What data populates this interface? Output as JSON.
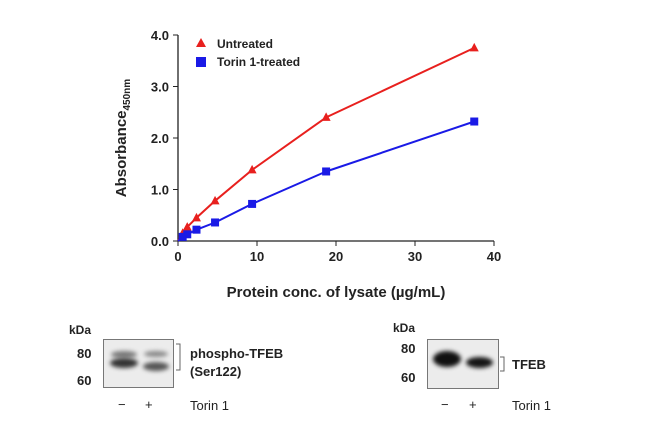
{
  "chart_data": {
    "type": "line",
    "xlabel": "Protein conc. of lysate (µg/mL)",
    "ylabel": "Absorbance",
    "ylabel_subscript": "450nm",
    "xlim": [
      0,
      40
    ],
    "ylim": [
      0,
      4
    ],
    "xticks": [
      "0",
      "10",
      "20",
      "30",
      "40"
    ],
    "yticks": [
      "0.0",
      "1.0",
      "2.0",
      "3.0",
      "4.0"
    ],
    "grid": false,
    "legend_position": "top-left",
    "series": [
      {
        "name": "Untreated",
        "color": "#e8201e",
        "marker": "triangle",
        "x": [
          0.59,
          1.17,
          2.34,
          4.69,
          9.38,
          18.75,
          37.5
        ],
        "y": [
          0.15,
          0.27,
          0.45,
          0.78,
          1.38,
          2.4,
          3.75
        ]
      },
      {
        "name": "Torin 1-treated",
        "color": "#1a1ae6",
        "marker": "square",
        "x": [
          0.59,
          1.17,
          2.34,
          4.69,
          9.38,
          18.75,
          37.5
        ],
        "y": [
          0.08,
          0.13,
          0.22,
          0.36,
          0.72,
          1.35,
          2.32
        ]
      }
    ]
  },
  "blots": [
    {
      "unit": "kDa",
      "markers": [
        "80",
        "60"
      ],
      "label_line1": "phospho-TFEB",
      "label_line2": "(Ser122)",
      "lanes": [
        "−",
        "+"
      ],
      "treatment": "Torin 1"
    },
    {
      "unit": "kDa",
      "markers": [
        "80",
        "60"
      ],
      "label_line1": "TFEB",
      "lanes": [
        "−",
        "+"
      ],
      "treatment": "Torin 1"
    }
  ]
}
